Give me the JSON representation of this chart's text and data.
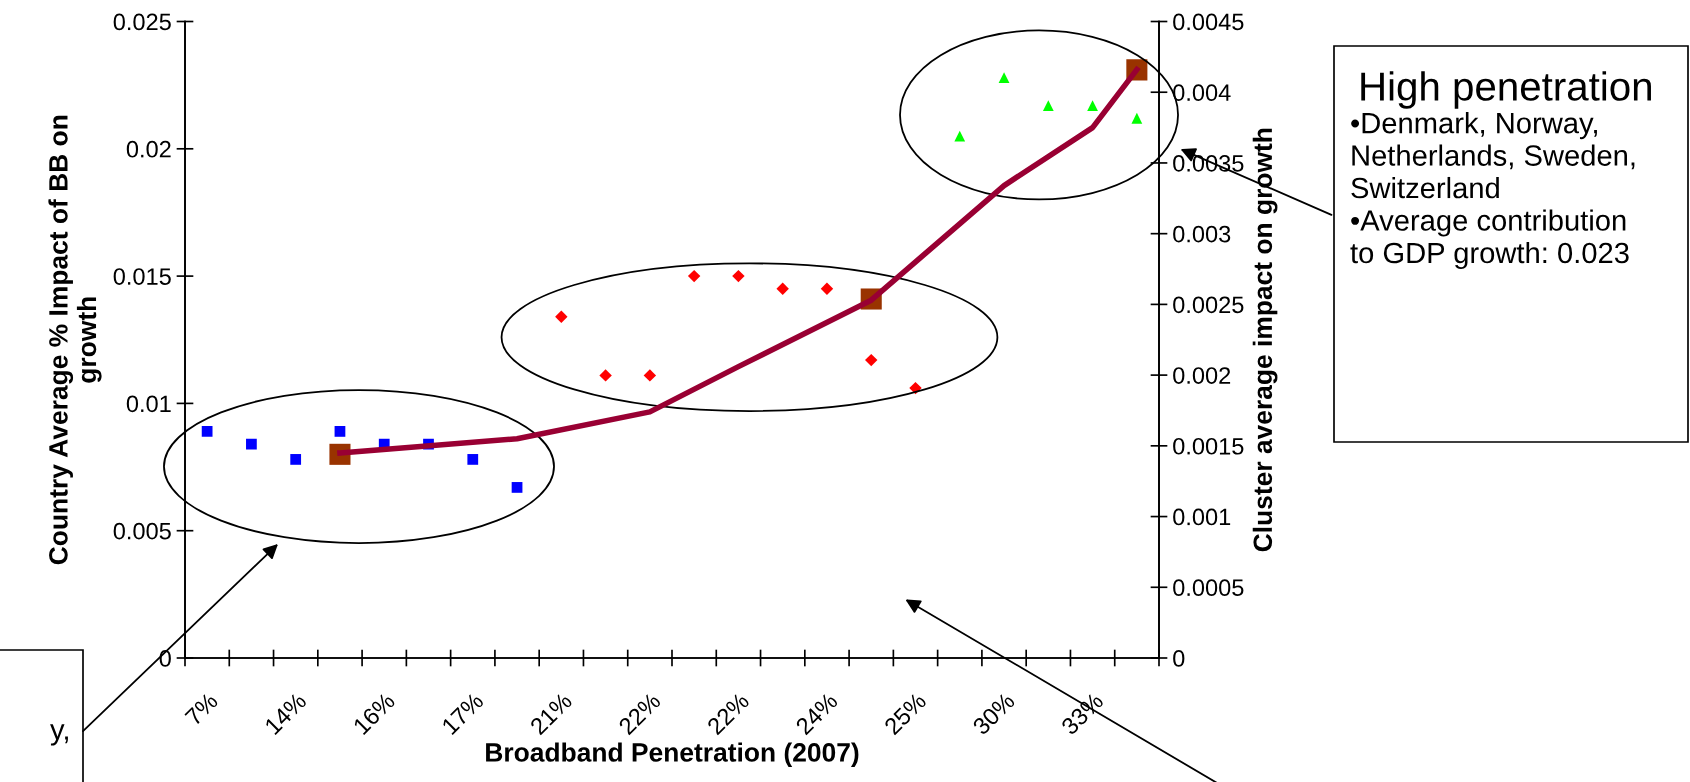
{
  "chart_data": {
    "type": "scatter",
    "xlabel": "Broadband Penetration (2007)",
    "ylabel": "Country Average % Impact of BB on\ngrowth",
    "y2label": "Cluster average impact on growth",
    "categories": [
      "7%",
      null,
      "14%",
      null,
      "16%",
      null,
      "17%",
      null,
      "21%",
      null,
      "22%",
      null,
      "22%",
      null,
      "24%",
      null,
      "25%",
      null,
      "30%",
      null,
      "33%",
      null
    ],
    "series": [
      {
        "marker": "square",
        "color": "#0000ff",
        "values": [
          0.0089,
          0.0084,
          0.0078,
          0.0089,
          0.0084,
          0.0084,
          0.0078,
          0.0067,
          null,
          null,
          null,
          null,
          null,
          null,
          null,
          null,
          null,
          null,
          null,
          null,
          null,
          null
        ]
      },
      {
        "marker": "diamond",
        "color": "#ff0000",
        "values": [
          null,
          null,
          null,
          null,
          null,
          null,
          null,
          null,
          0.0134,
          0.0111,
          0.0111,
          0.015,
          0.015,
          0.0145,
          0.0145,
          0.0117,
          0.0106,
          null,
          null,
          null,
          null,
          null
        ]
      },
      {
        "marker": "triangle",
        "color": "#00ff00",
        "values": [
          null,
          null,
          null,
          null,
          null,
          null,
          null,
          null,
          null,
          null,
          null,
          null,
          null,
          null,
          null,
          null,
          null,
          0.0205,
          0.0228,
          0.0217,
          0.0217,
          0.0212
        ]
      },
      {
        "type": "line",
        "axis": "y2",
        "marker": "none",
        "color": "#990033",
        "values": [
          null,
          null,
          null,
          0.00145,
          null,
          null,
          null,
          0.00155,
          null,
          null,
          0.00174,
          null,
          0.00206,
          null,
          null,
          0.00253,
          null,
          null,
          0.00334,
          null,
          0.00375,
          0.00416
        ]
      },
      {
        "marker": "square",
        "color": "#993300",
        "values": [
          null,
          null,
          null,
          0.008,
          null,
          null,
          null,
          null,
          null,
          null,
          null,
          null,
          null,
          null,
          null,
          0.0141,
          null,
          null,
          null,
          null,
          null,
          0.0231
        ]
      }
    ],
    "ylim": [
      0,
      0.025
    ],
    "yticks": [
      0,
      0.005,
      0.01,
      0.015,
      0.02,
      0.025
    ],
    "y2lim": [
      0,
      0.0045
    ],
    "y2ticks": [
      0,
      0.0005,
      0.001,
      0.0015,
      0.002,
      0.0025,
      0.003,
      0.0035,
      0.004,
      0.0045
    ],
    "grid": false,
    "legend": false,
    "annotations": [
      "High penetration",
      "•Denmark, Norway,\nNetherlands, Sweden,\nSwitzerland\n•Average contribution\nto GDP growth: 0.023",
      "y,"
    ]
  }
}
